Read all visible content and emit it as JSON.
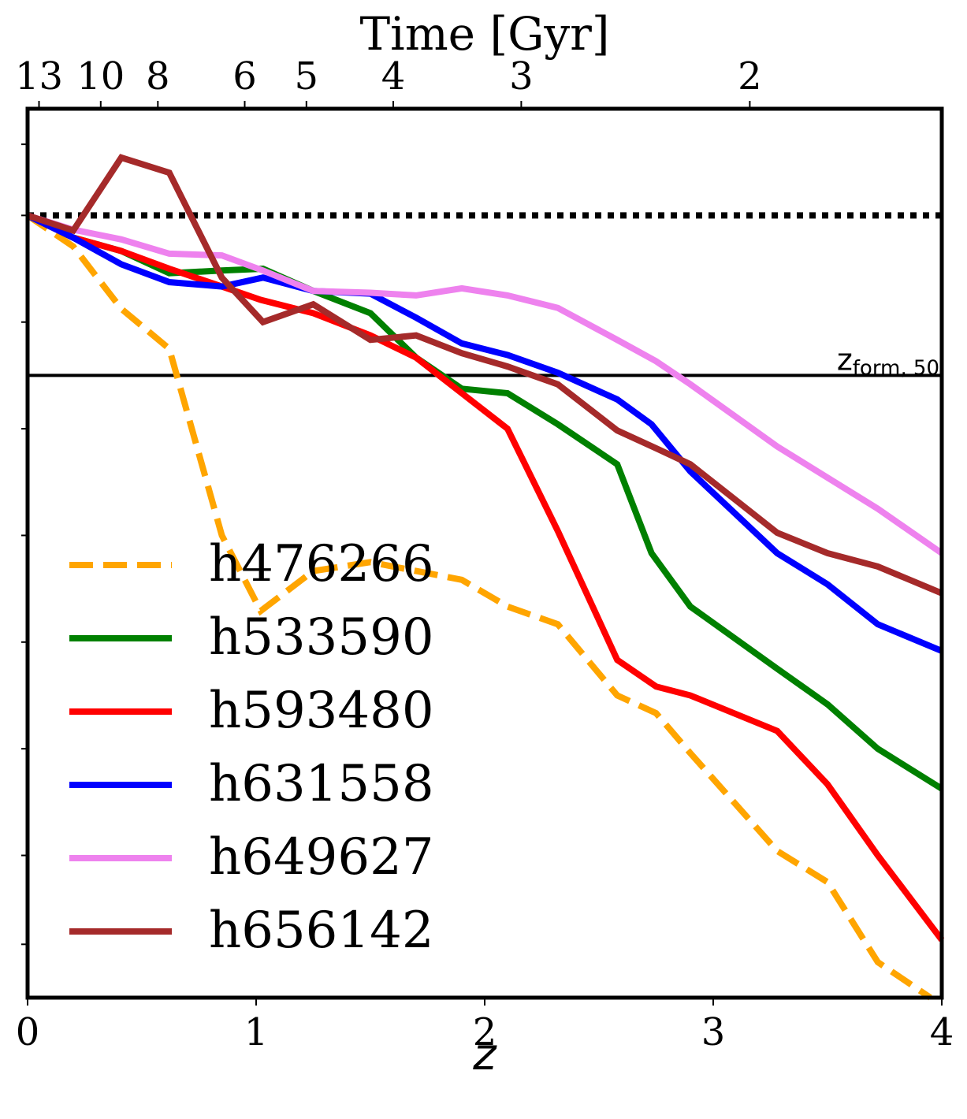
{
  "chart_data": {
    "type": "line",
    "xlabel": "z",
    "ylabel": "",
    "top_axis_label": "Time [Gyr]",
    "xlim": [
      0,
      4
    ],
    "ylim": [
      0,
      1
    ],
    "grid": false,
    "legend_position": "lower-left",
    "x_ticks": [
      0,
      1,
      2,
      3,
      4
    ],
    "x_tick_labels": [
      "0",
      "1",
      "2",
      "3",
      "4"
    ],
    "top_ticks": [
      {
        "z": 0.05,
        "label": "13"
      },
      {
        "z": 0.32,
        "label": "10"
      },
      {
        "z": 0.57,
        "label": "8"
      },
      {
        "z": 0.95,
        "label": "6"
      },
      {
        "z": 1.22,
        "label": "5"
      },
      {
        "z": 1.6,
        "label": "4"
      },
      {
        "z": 2.16,
        "label": "3"
      },
      {
        "z": 3.16,
        "label": "2"
      }
    ],
    "y_minor_ticks": [
      0.96,
      0.88,
      0.76,
      0.64,
      0.52,
      0.4,
      0.28,
      0.16,
      0.06
    ],
    "reference_line": {
      "y": 0.88,
      "style": "dotted",
      "color": "#000000"
    },
    "threshold_line": {
      "y": 0.7,
      "label": "z",
      "label_sub": "form, 50",
      "color": "#000000"
    },
    "series": [
      {
        "name": "h476266",
        "color": "#FFA500",
        "dash": "dashed",
        "x": [
          0,
          0.2,
          0.41,
          0.62,
          0.85,
          1.02,
          1.25,
          1.5,
          1.7,
          1.9,
          2.1,
          2.32,
          2.58,
          2.75,
          2.9,
          3.28,
          3.5,
          3.72,
          3.95
        ],
        "y": [
          0.88,
          0.845,
          0.775,
          0.73,
          0.52,
          0.435,
          0.48,
          0.49,
          0.48,
          0.47,
          0.44,
          0.42,
          0.34,
          0.32,
          0.275,
          0.165,
          0.13,
          0.04,
          0.0
        ]
      },
      {
        "name": "h533590",
        "color": "#008000",
        "dash": "solid",
        "x": [
          0,
          0.2,
          0.41,
          0.62,
          0.85,
          1.03,
          1.25,
          1.5,
          1.7,
          1.9,
          2.1,
          2.32,
          2.58,
          2.73,
          2.9,
          3.28,
          3.5,
          3.72,
          4.0
        ],
        "y": [
          0.88,
          0.855,
          0.84,
          0.815,
          0.818,
          0.82,
          0.795,
          0.77,
          0.72,
          0.685,
          0.68,
          0.645,
          0.6,
          0.5,
          0.44,
          0.37,
          0.33,
          0.28,
          0.235
        ]
      },
      {
        "name": "h593480",
        "color": "#FF0000",
        "dash": "solid",
        "x": [
          0,
          0.2,
          0.41,
          0.62,
          0.85,
          1.02,
          1.25,
          1.5,
          1.7,
          1.9,
          2.1,
          2.32,
          2.58,
          2.75,
          2.9,
          3.28,
          3.5,
          3.72,
          4.0
        ],
        "y": [
          0.88,
          0.855,
          0.84,
          0.82,
          0.8,
          0.785,
          0.77,
          0.745,
          0.72,
          0.68,
          0.64,
          0.525,
          0.38,
          0.35,
          0.34,
          0.3,
          0.24,
          0.16,
          0.065
        ]
      },
      {
        "name": "h631558",
        "color": "#0000FF",
        "dash": "solid",
        "x": [
          0,
          0.2,
          0.41,
          0.62,
          0.85,
          1.03,
          1.25,
          1.5,
          1.7,
          1.9,
          2.1,
          2.32,
          2.58,
          2.73,
          2.9,
          3.28,
          3.5,
          3.72,
          4.0
        ],
        "y": [
          0.88,
          0.855,
          0.825,
          0.805,
          0.8,
          0.81,
          0.795,
          0.792,
          0.765,
          0.736,
          0.723,
          0.703,
          0.673,
          0.645,
          0.592,
          0.5,
          0.465,
          0.42,
          0.39
        ]
      },
      {
        "name": "h649627",
        "color": "#EE82EE",
        "dash": "solid",
        "x": [
          0,
          0.2,
          0.41,
          0.62,
          0.85,
          1.03,
          1.25,
          1.5,
          1.7,
          1.9,
          2.1,
          2.32,
          2.58,
          2.75,
          2.9,
          3.28,
          3.5,
          3.72,
          4.0
        ],
        "y": [
          0.88,
          0.864,
          0.853,
          0.837,
          0.835,
          0.818,
          0.795,
          0.793,
          0.79,
          0.798,
          0.79,
          0.776,
          0.74,
          0.716,
          0.69,
          0.62,
          0.585,
          0.55,
          0.5
        ]
      },
      {
        "name": "h656142",
        "color": "#A52A2A",
        "dash": "solid",
        "x": [
          0,
          0.2,
          0.41,
          0.62,
          0.85,
          1.03,
          1.25,
          1.5,
          1.7,
          1.9,
          2.1,
          2.32,
          2.58,
          2.75,
          2.9,
          3.28,
          3.5,
          3.72,
          4.0
        ],
        "y": [
          0.88,
          0.863,
          0.945,
          0.928,
          0.81,
          0.76,
          0.78,
          0.74,
          0.745,
          0.725,
          0.71,
          0.69,
          0.638,
          0.618,
          0.6,
          0.523,
          0.5,
          0.485,
          0.455
        ]
      }
    ]
  }
}
